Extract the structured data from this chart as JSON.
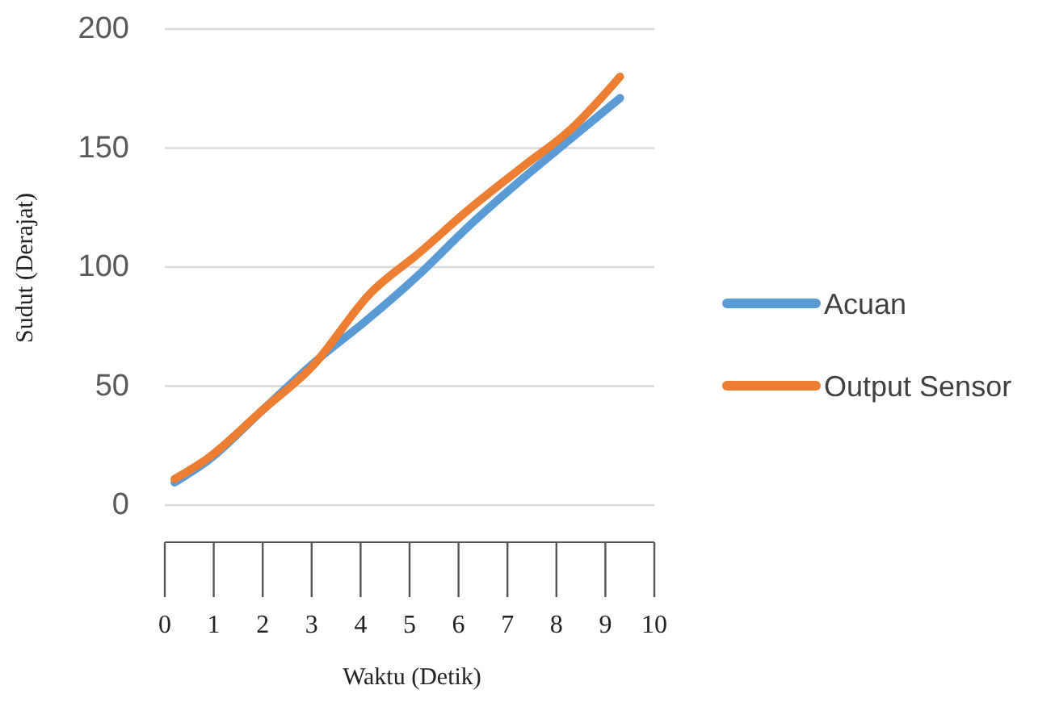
{
  "chart_data": {
    "type": "line",
    "xlabel": "Waktu (Detik)",
    "ylabel": "Sudut (Derajat)",
    "x": [
      0.2,
      0.9,
      2,
      3,
      4.2,
      5.2,
      6.2,
      7.3,
      8.3,
      9.3
    ],
    "series": [
      {
        "name": "Acuan",
        "color": "#5b9bd5",
        "values": [
          9.5,
          19,
          40,
          59,
          79,
          97,
          117,
          137,
          154,
          171
        ]
      },
      {
        "name": "Output Sensor",
        "color": "#ed7d31",
        "values": [
          11,
          20,
          40,
          58,
          89,
          106,
          124,
          142,
          158,
          180
        ]
      }
    ],
    "xlim": [
      0,
      10
    ],
    "xticks": [
      0,
      1,
      2,
      3,
      4,
      5,
      6,
      7,
      8,
      9,
      10
    ],
    "ylim": [
      0,
      200
    ],
    "yticks": [
      0,
      50,
      100,
      150,
      200
    ],
    "grid": "y",
    "legend": "right",
    "line_style": "solid",
    "marker": "none"
  }
}
